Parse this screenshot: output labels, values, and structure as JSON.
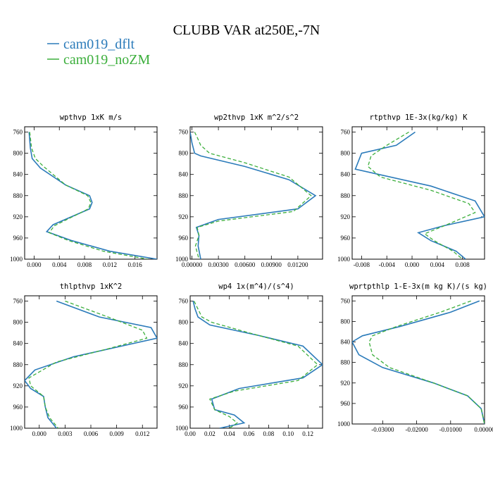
{
  "title": "CLUBB VAR at250E,-7N",
  "legend": [
    {
      "label": "cam019_dflt",
      "color": "#2b7bba"
    },
    {
      "label": "cam019_noZM",
      "color": "#3daf3d"
    }
  ],
  "chart_data": [
    {
      "type": "line",
      "title": "wpthvp  1xK m/s",
      "xlim": [
        -0.0015,
        0.0195
      ],
      "ylim": [
        1000,
        750
      ],
      "xticks": [
        "0.000",
        "0.004",
        "0.008",
        "0.012",
        "0.016"
      ],
      "yticks": [
        "760",
        "800",
        "840",
        "880",
        "920",
        "960",
        "1000"
      ],
      "series": [
        {
          "name": "cam019_dflt",
          "color": "#2b7bba",
          "dash": "",
          "x": [
            -0.0008,
            -0.0006,
            -0.0003,
            0.001,
            0.005,
            0.0088,
            0.0092,
            0.0088,
            0.003,
            0.002,
            0.006,
            0.012,
            0.0195
          ],
          "y": [
            760,
            790,
            810,
            828,
            860,
            880,
            893,
            905,
            935,
            948,
            965,
            985,
            1000
          ]
        },
        {
          "name": "cam019_noZM",
          "color": "#3daf3d",
          "dash": "5,3",
          "x": [
            -0.0007,
            -0.0004,
            0.0002,
            0.0015,
            0.005,
            0.0085,
            0.009,
            0.0086,
            0.0032,
            0.0024,
            0.0055,
            0.011,
            0.018
          ],
          "y": [
            760,
            790,
            810,
            825,
            860,
            880,
            893,
            905,
            937,
            950,
            965,
            985,
            1000
          ]
        }
      ]
    },
    {
      "type": "line",
      "title": "wp2thvp  1xK m^2/s^2",
      "xlim": [
        -0.0002,
        0.0148
      ],
      "ylim": [
        1000,
        750
      ],
      "xticks": [
        "0.00000",
        "0.00300",
        "0.00600",
        "0.00900",
        "0.01200"
      ],
      "yticks": [
        "760",
        "800",
        "840",
        "880",
        "920",
        "960",
        "1000"
      ],
      "series": [
        {
          "name": "cam019_dflt",
          "color": "#2b7bba",
          "dash": "",
          "x": [
            -0.0002,
            0.0,
            0.0003,
            0.001,
            0.006,
            0.011,
            0.014,
            0.012,
            0.003,
            0.0005,
            0.0008,
            0.0007,
            0.001
          ],
          "y": [
            760,
            780,
            800,
            805,
            825,
            850,
            880,
            905,
            925,
            940,
            955,
            975,
            1000
          ]
        },
        {
          "name": "cam019_noZM",
          "color": "#3daf3d",
          "dash": "5,3",
          "x": [
            0.0003,
            0.0006,
            0.001,
            0.002,
            0.006,
            0.011,
            0.0135,
            0.0115,
            0.003,
            0.0006,
            0.0008,
            0.0004,
            0.0008
          ],
          "y": [
            760,
            770,
            785,
            800,
            818,
            845,
            880,
            910,
            928,
            940,
            955,
            975,
            1000
          ]
        }
      ]
    },
    {
      "type": "line",
      "title": "rtpthvp  1E-3x(kg/kg) K",
      "xlim": [
        -0.0095,
        0.0115
      ],
      "ylim": [
        1000,
        750
      ],
      "xticks": [
        "-0.008",
        "-0.004",
        "0.000",
        "0.004",
        "0.008"
      ],
      "yticks": [
        "760",
        "800",
        "840",
        "880",
        "920",
        "960",
        "1000"
      ],
      "series": [
        {
          "name": "cam019_dflt",
          "color": "#2b7bba",
          "dash": "",
          "x": [
            0.0005,
            -0.0025,
            -0.008,
            -0.009,
            -0.006,
            0.003,
            0.01,
            0.0115,
            0.005,
            0.001,
            0.003,
            0.007,
            0.0085
          ],
          "y": [
            760,
            785,
            800,
            830,
            838,
            862,
            890,
            920,
            937,
            950,
            965,
            985,
            1000
          ]
        },
        {
          "name": "cam019_noZM",
          "color": "#3daf3d",
          "dash": "5,3",
          "x": [
            -0.0005,
            -0.004,
            -0.0065,
            -0.007,
            -0.005,
            0.003,
            0.009,
            0.01,
            0.0055,
            0.002,
            0.0035,
            0.0065,
            0.008
          ],
          "y": [
            760,
            785,
            805,
            825,
            845,
            870,
            895,
            912,
            935,
            952,
            965,
            985,
            1000
          ]
        }
      ]
    },
    {
      "type": "line",
      "title": "thlpthvp  1xK^2",
      "xlim": [
        -0.0017,
        0.0137
      ],
      "ylim": [
        1000,
        750
      ],
      "xticks": [
        "0.000",
        "0.003",
        "0.006",
        "0.009",
        "0.012"
      ],
      "yticks": [
        "760",
        "800",
        "840",
        "880",
        "920",
        "960",
        "1000"
      ],
      "series": [
        {
          "name": "cam019_dflt",
          "color": "#2b7bba",
          "dash": "",
          "x": [
            0.002,
            0.007,
            0.013,
            0.0137,
            0.004,
            -0.0005,
            -0.0017,
            -0.001,
            0.0005,
            0.0007,
            0.001,
            0.002
          ],
          "y": [
            760,
            790,
            810,
            830,
            865,
            890,
            910,
            925,
            940,
            960,
            980,
            1000
          ]
        },
        {
          "name": "cam019_noZM",
          "color": "#3daf3d",
          "dash": "5,3",
          "x": [
            0.003,
            0.008,
            0.012,
            0.0125,
            0.008,
            0.002,
            -0.0012,
            -0.001,
            0.0005,
            0.0007,
            0.0012,
            0.0022
          ],
          "y": [
            760,
            790,
            815,
            830,
            850,
            875,
            905,
            920,
            940,
            960,
            980,
            1000
          ]
        }
      ]
    },
    {
      "type": "line",
      "title": "wp4  1x(m^4)/(s^4)",
      "xlim": [
        0.0,
        0.135
      ],
      "ylim": [
        1000,
        750
      ],
      "xticks": [
        "0.00",
        "0.02",
        "0.04",
        "0.06",
        "0.08",
        "0.10",
        "0.12"
      ],
      "yticks": [
        "760",
        "800",
        "840",
        "880",
        "920",
        "960",
        "1000"
      ],
      "series": [
        {
          "name": "cam019_dflt",
          "color": "#2b7bba",
          "dash": "",
          "x": [
            0.003,
            0.005,
            0.008,
            0.02,
            0.07,
            0.115,
            0.135,
            0.115,
            0.05,
            0.022,
            0.025,
            0.045,
            0.055,
            0.03
          ],
          "y": [
            760,
            775,
            790,
            805,
            825,
            845,
            880,
            905,
            925,
            945,
            965,
            975,
            990,
            1000
          ]
        },
        {
          "name": "cam019_noZM",
          "color": "#3daf3d",
          "dash": "5,3",
          "x": [
            0.004,
            0.008,
            0.012,
            0.022,
            0.06,
            0.11,
            0.13,
            0.11,
            0.045,
            0.02,
            0.025,
            0.04,
            0.048,
            0.04
          ],
          "y": [
            760,
            775,
            790,
            800,
            820,
            845,
            880,
            910,
            930,
            945,
            965,
            978,
            990,
            1000
          ]
        }
      ]
    },
    {
      "type": "line",
      "title": "wprtpthlp  1-E-3x(m kg K)/(s kg)",
      "xlim": [
        -0.039,
        0.0
      ],
      "ylim": [
        1000,
        750
      ],
      "xticks": [
        "-0.03000",
        "-0.02000",
        "-0.01000",
        "0.00000"
      ],
      "yticks": [
        "760",
        "800",
        "840",
        "880",
        "920",
        "960",
        "1000"
      ],
      "series": [
        {
          "name": "cam019_dflt",
          "color": "#2b7bba",
          "dash": "",
          "x": [
            -0.0015,
            -0.01,
            -0.025,
            -0.036,
            -0.039,
            -0.037,
            -0.03,
            -0.015,
            -0.005,
            -0.001,
            0.0
          ],
          "y": [
            760,
            782,
            810,
            828,
            840,
            865,
            890,
            920,
            945,
            970,
            1000
          ]
        },
        {
          "name": "cam019_noZM",
          "color": "#3daf3d",
          "dash": "5,3",
          "x": [
            -0.004,
            -0.013,
            -0.026,
            -0.033,
            -0.034,
            -0.033,
            -0.028,
            -0.015,
            -0.005,
            -0.001,
            0.0
          ],
          "y": [
            760,
            782,
            810,
            828,
            840,
            865,
            890,
            920,
            945,
            970,
            1000
          ]
        }
      ]
    }
  ]
}
